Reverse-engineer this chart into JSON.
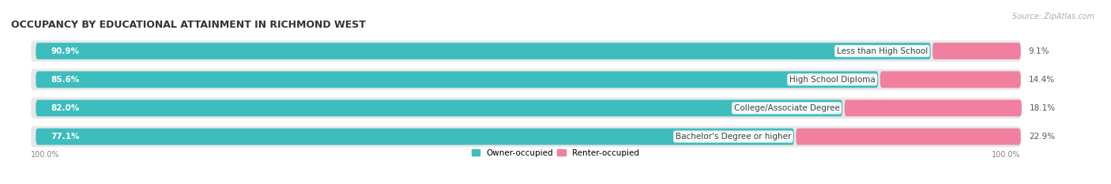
{
  "title": "OCCUPANCY BY EDUCATIONAL ATTAINMENT IN RICHMOND WEST",
  "source": "Source: ZipAtlas.com",
  "categories": [
    "Less than High School",
    "High School Diploma",
    "College/Associate Degree",
    "Bachelor's Degree or higher"
  ],
  "owner_values": [
    90.9,
    85.6,
    82.0,
    77.1
  ],
  "renter_values": [
    9.1,
    14.4,
    18.1,
    22.9
  ],
  "owner_color": "#3dbdbd",
  "renter_color": "#f07fa0",
  "row_bg_color": "#e0e0e0",
  "row_inner_bg": "#f2f2f2",
  "title_fontsize": 9,
  "label_fontsize": 7.5,
  "pct_fontsize": 7.5,
  "tick_fontsize": 7,
  "source_fontsize": 7,
  "legend_fontsize": 7.5,
  "bar_height": 0.58,
  "xlim_left": -2,
  "xlim_right": 108,
  "background_color": "#ffffff"
}
